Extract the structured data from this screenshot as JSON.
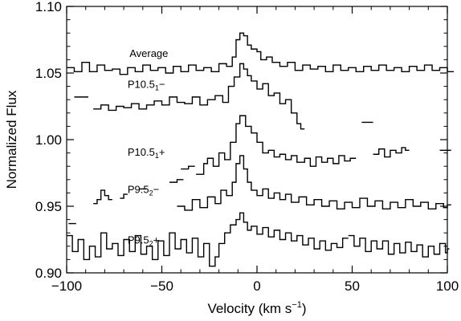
{
  "chart_data": {
    "type": "line",
    "title": "",
    "xlabel": "Velocity (km s",
    "xlabel_sup": "−1",
    "xlabel_close": ")",
    "ylabel": "Normalized Flux",
    "xlim": [
      -100,
      100
    ],
    "ylim": [
      0.9,
      1.1
    ],
    "x_ticks": [
      -100,
      -50,
      0,
      50,
      100
    ],
    "x_tick_labels": [
      "−100",
      "−50",
      "0",
      "50",
      "100"
    ],
    "y_ticks": [
      0.9,
      0.95,
      1.0,
      1.05,
      1.1
    ],
    "y_tick_labels": [
      "0.90",
      "0.95",
      "1.00",
      "1.05",
      "1.10"
    ],
    "grid": false,
    "line_color": "#000000",
    "series": [
      {
        "name": "Average",
        "label": {
          "main": "Average",
          "sub": "",
          "suffix": ""
        },
        "label_anchor": [
          -67,
          1.062
        ],
        "segments": [
          [
            [
              -100,
              1.054
            ],
            [
              -96,
              1.051
            ],
            [
              -92,
              1.058
            ],
            [
              -88,
              1.051
            ],
            [
              -84,
              1.056
            ],
            [
              -80,
              1.052
            ],
            [
              -76,
              1.053
            ],
            [
              -72,
              1.049
            ],
            [
              -68,
              1.054
            ],
            [
              -64,
              1.051
            ],
            [
              -60,
              1.056
            ],
            [
              -56,
              1.052
            ],
            [
              -52,
              1.054
            ],
            [
              -48,
              1.05
            ],
            [
              -44,
              1.055
            ],
            [
              -40,
              1.051
            ],
            [
              -36,
              1.056
            ],
            [
              -32,
              1.052
            ],
            [
              -28,
              1.054
            ],
            [
              -24,
              1.051
            ],
            [
              -20,
              1.057
            ],
            [
              -16,
              1.055
            ],
            [
              -13,
              1.062
            ],
            [
              -11,
              1.075
            ],
            [
              -9,
              1.08
            ],
            [
              -7,
              1.078
            ],
            [
              -5,
              1.071
            ],
            [
              -3,
              1.068
            ],
            [
              0,
              1.066
            ],
            [
              2,
              1.06
            ],
            [
              5,
              1.062
            ],
            [
              8,
              1.058
            ],
            [
              12,
              1.055
            ],
            [
              16,
              1.058
            ],
            [
              20,
              1.052
            ],
            [
              24,
              1.056
            ],
            [
              28,
              1.053
            ],
            [
              32,
              1.055
            ],
            [
              36,
              1.051
            ],
            [
              40,
              1.056
            ],
            [
              44,
              1.052
            ],
            [
              48,
              1.054
            ],
            [
              52,
              1.051
            ],
            [
              56,
              1.055
            ],
            [
              60,
              1.052
            ],
            [
              64,
              1.056
            ],
            [
              68,
              1.052
            ],
            [
              72,
              1.054
            ],
            [
              76,
              1.051
            ],
            [
              80,
              1.055
            ],
            [
              84,
              1.052
            ],
            [
              88,
              1.056
            ],
            [
              92,
              1.052
            ],
            [
              96,
              1.054
            ],
            [
              100,
              1.051
            ]
          ]
        ]
      },
      {
        "name": "P10.5₁−",
        "label": {
          "main": "P10.5",
          "sub": "1",
          "suffix": "−"
        },
        "label_anchor": [
          -68,
          1.039
        ],
        "segments": [
          [
            [
              -96,
              1.032
            ],
            [
              -92,
              1.032
            ]
          ],
          [
            [
              -86,
              1.023
            ],
            [
              -82,
              1.026
            ],
            [
              -78,
              1.022
            ],
            [
              -74,
              1.025
            ],
            [
              -70,
              1.024
            ],
            [
              -66,
              1.027
            ],
            [
              -62,
              1.023
            ],
            [
              -58,
              1.026
            ],
            [
              -54,
              1.029
            ],
            [
              -50,
              1.026
            ],
            [
              -46,
              1.032
            ],
            [
              -42,
              1.028
            ],
            [
              -38,
              1.027
            ],
            [
              -34,
              1.032
            ],
            [
              -30,
              1.026
            ],
            [
              -26,
              1.03
            ],
            [
              -22,
              1.033
            ],
            [
              -18,
              1.028
            ],
            [
              -15,
              1.04
            ],
            [
              -12,
              1.047
            ],
            [
              -9,
              1.057
            ],
            [
              -7,
              1.053
            ],
            [
              -5,
              1.048
            ],
            [
              -3,
              1.044
            ],
            [
              0,
              1.038
            ],
            [
              3,
              1.042
            ],
            [
              6,
              1.033
            ],
            [
              9,
              1.035
            ],
            [
              12,
              1.027
            ],
            [
              15,
              1.03
            ],
            [
              18,
              1.02
            ],
            [
              21,
              1.012
            ],
            [
              23,
              1.008
            ]
          ]
        ]
      },
      {
        "name": "P10.5₁+",
        "label": {
          "main": "P10.5",
          "sub": "1",
          "suffix": "+"
        },
        "label_anchor": [
          -68,
          0.988
        ],
        "segments": [
          [
            [
              -46,
              0.968
            ],
            [
              -42,
              0.97
            ]
          ],
          [
            [
              -40,
              0.978
            ],
            [
              -36,
              0.98
            ]
          ],
          [
            [
              -32,
              0.974
            ],
            [
              -28,
              0.982
            ],
            [
              -26,
              0.986
            ],
            [
              -23,
              0.98
            ],
            [
              -20,
              0.99
            ],
            [
              -17,
              0.985
            ],
            [
              -14,
              0.998
            ],
            [
              -11,
              1.012
            ],
            [
              -9,
              1.018
            ],
            [
              -6,
              1.01
            ],
            [
              -3,
              1.005
            ],
            [
              0,
              0.998
            ],
            [
              3,
              0.99
            ],
            [
              6,
              0.992
            ],
            [
              9,
              0.987
            ],
            [
              12,
              0.989
            ],
            [
              15,
              0.985
            ],
            [
              18,
              0.988
            ],
            [
              21,
              0.983
            ],
            [
              25,
              0.986
            ],
            [
              28,
              0.98
            ],
            [
              31,
              0.987
            ],
            [
              34,
              0.983
            ],
            [
              37,
              0.986
            ],
            [
              40,
              0.982
            ],
            [
              43,
              0.988
            ],
            [
              46,
              0.984
            ],
            [
              49,
              0.986
            ]
          ],
          [
            [
              55,
              1.013
            ],
            [
              58,
              1.013
            ]
          ],
          [
            [
              61,
              0.989
            ],
            [
              64,
              0.993
            ],
            [
              67,
              0.987
            ],
            [
              70,
              0.992
            ],
            [
              73,
              0.99
            ],
            [
              76,
              0.994
            ],
            [
              78,
              0.992
            ]
          ],
          [
            [
              96,
              0.992
            ],
            [
              99,
              0.992
            ]
          ]
        ]
      },
      {
        "name": "P9.5₂−",
        "label": {
          "main": "P9.5",
          "sub": "2",
          "suffix": "−"
        },
        "label_anchor": [
          -68,
          0.96
        ],
        "segments": [
          [
            [
              -99,
              0.937
            ],
            [
              -97,
              0.937
            ]
          ],
          [
            [
              -86,
              0.952
            ],
            [
              -84,
              0.955
            ],
            [
              -82,
              0.962
            ],
            [
              -80,
              0.958
            ],
            [
              -78,
              0.955
            ]
          ],
          [
            [
              -72,
              0.956
            ],
            [
              -70,
              0.959
            ]
          ],
          [
            [
              -62,
              0.963
            ],
            [
              -60,
              0.963
            ]
          ],
          [
            [
              -42,
              0.95
            ],
            [
              -38,
              0.947
            ],
            [
              -34,
              0.955
            ],
            [
              -30,
              0.949
            ],
            [
              -26,
              0.957
            ],
            [
              -22,
              0.952
            ],
            [
              -19,
              0.962
            ],
            [
              -16,
              0.958
            ],
            [
              -13,
              0.968
            ],
            [
              -11,
              0.982
            ],
            [
              -9,
              0.988
            ],
            [
              -7,
              0.978
            ],
            [
              -5,
              0.968
            ],
            [
              -3,
              0.962
            ],
            [
              0,
              0.958
            ],
            [
              3,
              0.963
            ],
            [
              6,
              0.956
            ],
            [
              9,
              0.96
            ],
            [
              12,
              0.955
            ],
            [
              15,
              0.959
            ],
            [
              18,
              0.953
            ],
            [
              22,
              0.957
            ],
            [
              26,
              0.951
            ],
            [
              30,
              0.955
            ],
            [
              34,
              0.95
            ],
            [
              38,
              0.954
            ],
            [
              42,
              0.948
            ],
            [
              46,
              0.953
            ],
            [
              50,
              0.949
            ],
            [
              54,
              0.956
            ],
            [
              58,
              0.95
            ],
            [
              62,
              0.954
            ],
            [
              66,
              0.948
            ],
            [
              70,
              0.953
            ],
            [
              74,
              0.949
            ],
            [
              78,
              0.955
            ],
            [
              82,
              0.95
            ],
            [
              86,
              0.953
            ],
            [
              90,
              0.948
            ],
            [
              94,
              0.952
            ],
            [
              98,
              0.949
            ],
            [
              100,
              0.951
            ]
          ]
        ]
      },
      {
        "name": "P9.5₂+",
        "label": {
          "main": "P9.5",
          "sub": "2",
          "suffix": "+"
        },
        "label_anchor": [
          -68,
          0.922
        ],
        "segments": [
          [
            [
              -100,
              0.928
            ],
            [
              -97,
              0.916
            ],
            [
              -94,
              0.925
            ],
            [
              -91,
              0.91
            ],
            [
              -88,
              0.92
            ],
            [
              -85,
              0.912
            ],
            [
              -82,
              0.93
            ],
            [
              -79,
              0.918
            ],
            [
              -76,
              0.922
            ],
            [
              -73,
              0.913
            ],
            [
              -70,
              0.925
            ],
            [
              -67,
              0.916
            ],
            [
              -64,
              0.928
            ],
            [
              -61,
              0.914
            ],
            [
              -58,
              0.92
            ],
            [
              -55,
              0.91
            ],
            [
              -52,
              0.924
            ],
            [
              -49,
              0.913
            ],
            [
              -46,
              0.93
            ],
            [
              -43,
              0.918
            ],
            [
              -40,
              0.925
            ],
            [
              -37,
              0.915
            ],
            [
              -34,
              0.926
            ],
            [
              -31,
              0.912
            ],
            [
              -28,
              0.922
            ],
            [
              -25,
              0.905
            ],
            [
              -22,
              0.912
            ],
            [
              -20,
              0.922
            ],
            [
              -17,
              0.93
            ],
            [
              -14,
              0.936
            ],
            [
              -11,
              0.94
            ],
            [
              -9,
              0.945
            ],
            [
              -7,
              0.938
            ],
            [
              -5,
              0.932
            ],
            [
              -3,
              0.935
            ],
            [
              0,
              0.929
            ],
            [
              3,
              0.934
            ],
            [
              6,
              0.927
            ],
            [
              9,
              0.932
            ],
            [
              12,
              0.925
            ],
            [
              15,
              0.93
            ],
            [
              18,
              0.924
            ],
            [
              21,
              0.928
            ],
            [
              24,
              0.921
            ],
            [
              27,
              0.926
            ],
            [
              30,
              0.918
            ],
            [
              33,
              0.924
            ],
            [
              36,
              0.917
            ],
            [
              39,
              0.922
            ],
            [
              42,
              0.919
            ],
            [
              45,
              0.926
            ]
          ],
          [
            [
              48,
              0.928
            ],
            [
              51,
              0.92
            ],
            [
              54,
              0.926
            ],
            [
              57,
              0.916
            ],
            [
              60,
              0.924
            ],
            [
              63,
              0.918
            ],
            [
              66,
              0.924
            ],
            [
              69,
              0.914
            ],
            [
              72,
              0.922
            ],
            [
              75,
              0.915
            ],
            [
              78,
              0.923
            ],
            [
              81,
              0.916
            ],
            [
              84,
              0.921
            ],
            [
              87,
              0.912
            ],
            [
              90,
              0.92
            ],
            [
              93,
              0.914
            ],
            [
              96,
              0.922
            ],
            [
              99,
              0.915
            ],
            [
              100,
              0.918
            ]
          ]
        ]
      }
    ]
  }
}
